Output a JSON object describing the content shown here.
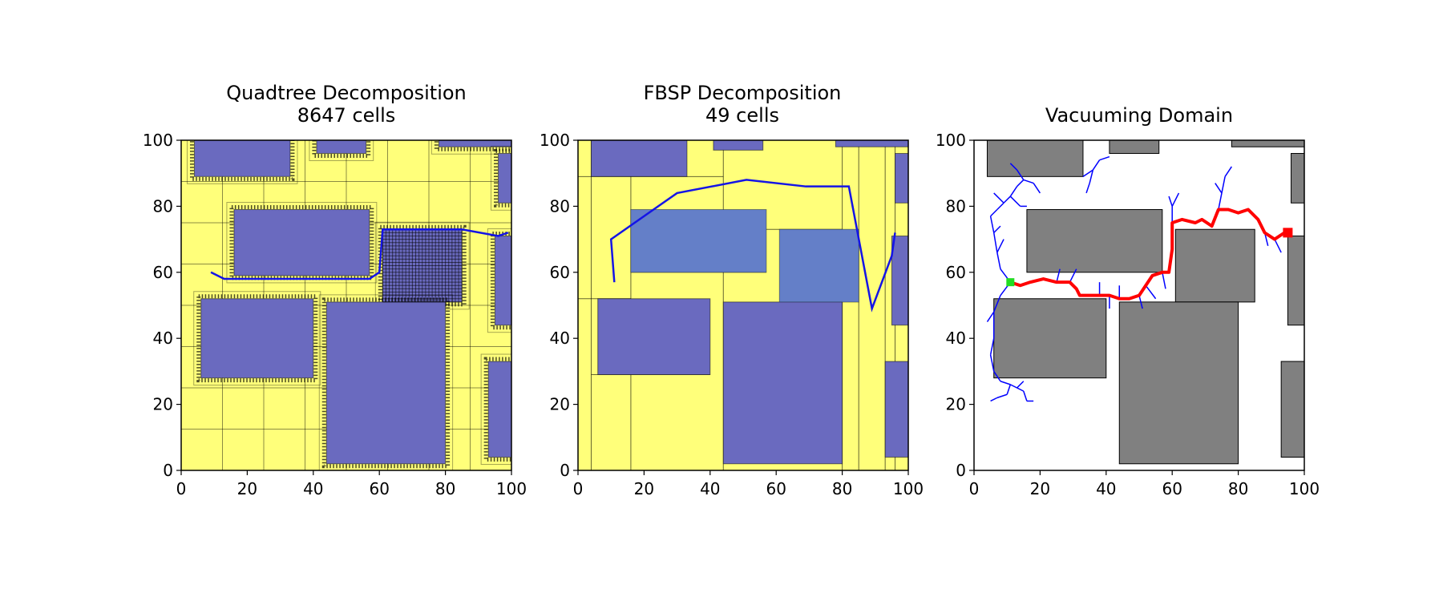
{
  "chart_data": [
    {
      "type": "decomposition",
      "title": "Quadtree Decomposition",
      "subtitle": "8647 cells",
      "xlim": [
        0,
        100
      ],
      "ylim": [
        0,
        100
      ],
      "xticks": [
        "0",
        "20",
        "40",
        "60",
        "80",
        "100"
      ],
      "yticks": [
        "0",
        "20",
        "40",
        "60",
        "80",
        "100"
      ],
      "free_color": "#ffff7a",
      "obstacle_color": "#6a6abf",
      "path_color": "#1414e6",
      "obstacles": [
        {
          "x0": 4,
          "y0": 89,
          "x1": 33,
          "y1": 100
        },
        {
          "x0": 41,
          "y0": 96,
          "x1": 56,
          "y1": 100
        },
        {
          "x0": 78,
          "y0": 98,
          "x1": 100,
          "y1": 100
        },
        {
          "x0": 96,
          "y0": 81,
          "x1": 100,
          "y1": 96
        },
        {
          "x0": 16,
          "y0": 59,
          "x1": 57,
          "y1": 79
        },
        {
          "x0": 61,
          "y0": 51,
          "x1": 85,
          "y1": 73
        },
        {
          "x0": 95,
          "y0": 44,
          "x1": 100,
          "y1": 71
        },
        {
          "x0": 6,
          "y0": 28,
          "x1": 40,
          "y1": 52
        },
        {
          "x0": 44,
          "y0": 2,
          "x1": 80,
          "y1": 51
        },
        {
          "x0": 93,
          "y0": 4,
          "x1": 100,
          "y1": 33
        }
      ],
      "path": [
        [
          9,
          60
        ],
        [
          13,
          58
        ],
        [
          57,
          58
        ],
        [
          60,
          60
        ],
        [
          61,
          73
        ],
        [
          85,
          73
        ],
        [
          96,
          71
        ],
        [
          99,
          72
        ]
      ]
    },
    {
      "type": "decomposition",
      "title": "FBSP Decomposition",
      "subtitle": "49 cells",
      "xlim": [
        0,
        100
      ],
      "ylim": [
        0,
        100
      ],
      "xticks": [
        "0",
        "20",
        "40",
        "60",
        "80",
        "100"
      ],
      "yticks": [
        "0",
        "20",
        "40",
        "60",
        "80",
        "100"
      ],
      "free_color": "#ffff7a",
      "obstacle_color": "#6a6abf",
      "path_color": "#1414e6",
      "obstacles": [
        {
          "x0": 4,
          "y0": 89,
          "x1": 33,
          "y1": 100
        },
        {
          "x0": 41,
          "y0": 97,
          "x1": 56,
          "y1": 100
        },
        {
          "x0": 78,
          "y0": 98,
          "x1": 100,
          "y1": 100
        },
        {
          "x0": 96,
          "y0": 81,
          "x1": 100,
          "y1": 96
        },
        {
          "x0": 16,
          "y0": 60,
          "x1": 57,
          "y1": 79
        },
        {
          "x0": 61,
          "y0": 51,
          "x1": 85,
          "y1": 73
        },
        {
          "x0": 95,
          "y0": 44,
          "x1": 100,
          "y1": 71
        },
        {
          "x0": 6,
          "y0": 29,
          "x1": 40,
          "y1": 52
        },
        {
          "x0": 44,
          "y0": 2,
          "x1": 80,
          "y1": 51
        },
        {
          "x0": 93,
          "y0": 4,
          "x1": 100,
          "y1": 33
        }
      ],
      "path": [
        [
          11,
          57
        ],
        [
          10,
          70
        ],
        [
          30,
          84
        ],
        [
          51,
          88
        ],
        [
          69,
          86
        ],
        [
          82,
          86
        ],
        [
          89,
          49
        ],
        [
          95,
          65
        ],
        [
          96,
          72
        ]
      ]
    },
    {
      "type": "tree",
      "title": "Vacuuming Domain",
      "xlim": [
        0,
        100
      ],
      "ylim": [
        0,
        100
      ],
      "xticks": [
        "0",
        "20",
        "40",
        "60",
        "80",
        "100"
      ],
      "yticks": [
        "0",
        "20",
        "40",
        "60",
        "80",
        "100"
      ],
      "obstacle_color": "#808080",
      "tree_color": "#0000ff",
      "path_color": "#ff0000",
      "start_color": "#22dd22",
      "goal_color": "#ff0000",
      "start": [
        11,
        57
      ],
      "goal": [
        95,
        72
      ],
      "obstacles": [
        {
          "x0": 4,
          "y0": 89,
          "x1": 33,
          "y1": 100
        },
        {
          "x0": 41,
          "y0": 96,
          "x1": 56,
          "y1": 100
        },
        {
          "x0": 78,
          "y0": 98,
          "x1": 100,
          "y1": 100
        },
        {
          "x0": 96,
          "y0": 81,
          "x1": 100,
          "y1": 96
        },
        {
          "x0": 16,
          "y0": 60,
          "x1": 57,
          "y1": 79
        },
        {
          "x0": 61,
          "y0": 51,
          "x1": 85,
          "y1": 73
        },
        {
          "x0": 95,
          "y0": 44,
          "x1": 100,
          "y1": 71
        },
        {
          "x0": 6,
          "y0": 28,
          "x1": 40,
          "y1": 52
        },
        {
          "x0": 44,
          "y0": 2,
          "x1": 80,
          "y1": 51
        },
        {
          "x0": 93,
          "y0": 4,
          "x1": 100,
          "y1": 33
        }
      ],
      "path": [
        [
          11,
          57
        ],
        [
          14,
          56
        ],
        [
          17,
          57
        ],
        [
          21,
          58
        ],
        [
          25,
          57
        ],
        [
          29,
          57
        ],
        [
          31,
          55
        ],
        [
          32,
          53
        ],
        [
          35,
          53
        ],
        [
          38,
          53
        ],
        [
          41,
          53
        ],
        [
          44,
          52
        ],
        [
          47,
          52
        ],
        [
          50,
          53
        ],
        [
          52,
          56
        ],
        [
          54,
          59
        ],
        [
          57,
          60
        ],
        [
          59,
          60
        ],
        [
          60,
          67
        ],
        [
          60,
          75
        ],
        [
          63,
          76
        ],
        [
          67,
          75
        ],
        [
          69,
          76
        ],
        [
          72,
          74
        ],
        [
          74,
          79
        ],
        [
          77,
          79
        ],
        [
          80,
          78
        ],
        [
          83,
          79
        ],
        [
          86,
          76
        ],
        [
          88,
          72
        ],
        [
          91,
          70
        ],
        [
          94,
          72
        ],
        [
          95,
          72
        ]
      ],
      "tree_edges": [
        [
          [
            11,
            57
          ],
          [
            8,
            61
          ]
        ],
        [
          [
            8,
            61
          ],
          [
            7,
            66
          ]
        ],
        [
          [
            7,
            66
          ],
          [
            6,
            72
          ]
        ],
        [
          [
            6,
            72
          ],
          [
            5,
            77
          ]
        ],
        [
          [
            7,
            66
          ],
          [
            9,
            70
          ]
        ],
        [
          [
            6,
            72
          ],
          [
            8,
            74
          ]
        ],
        [
          [
            5,
            77
          ],
          [
            7,
            79
          ]
        ],
        [
          [
            7,
            79
          ],
          [
            9,
            81
          ]
        ],
        [
          [
            9,
            81
          ],
          [
            11,
            83
          ]
        ],
        [
          [
            11,
            83
          ],
          [
            13,
            86
          ]
        ],
        [
          [
            13,
            86
          ],
          [
            15,
            88
          ]
        ],
        [
          [
            15,
            88
          ],
          [
            13,
            91
          ]
        ],
        [
          [
            13,
            91
          ],
          [
            11,
            93
          ]
        ],
        [
          [
            15,
            88
          ],
          [
            18,
            87
          ]
        ],
        [
          [
            18,
            87
          ],
          [
            20,
            84
          ]
        ],
        [
          [
            9,
            81
          ],
          [
            6,
            84
          ]
        ],
        [
          [
            11,
            83
          ],
          [
            14,
            80
          ]
        ],
        [
          [
            14,
            80
          ],
          [
            16,
            80
          ]
        ],
        [
          [
            11,
            57
          ],
          [
            8,
            53
          ]
        ],
        [
          [
            8,
            53
          ],
          [
            6,
            48
          ]
        ],
        [
          [
            6,
            48
          ],
          [
            4,
            45
          ]
        ],
        [
          [
            6,
            48
          ],
          [
            6,
            40
          ]
        ],
        [
          [
            6,
            40
          ],
          [
            5,
            35
          ]
        ],
        [
          [
            5,
            35
          ],
          [
            6,
            30
          ]
        ],
        [
          [
            6,
            30
          ],
          [
            8,
            27
          ]
        ],
        [
          [
            8,
            27
          ],
          [
            11,
            26
          ]
        ],
        [
          [
            11,
            26
          ],
          [
            13,
            25
          ]
        ],
        [
          [
            13,
            25
          ],
          [
            15,
            24
          ]
        ],
        [
          [
            15,
            24
          ],
          [
            16,
            21
          ]
        ],
        [
          [
            16,
            21
          ],
          [
            18,
            21
          ]
        ],
        [
          [
            11,
            26
          ],
          [
            10,
            23
          ]
        ],
        [
          [
            10,
            23
          ],
          [
            7,
            22
          ]
        ],
        [
          [
            7,
            22
          ],
          [
            5,
            21
          ]
        ],
        [
          [
            13,
            25
          ],
          [
            15,
            27
          ]
        ],
        [
          [
            25,
            57
          ],
          [
            26,
            61
          ]
        ],
        [
          [
            29,
            57
          ],
          [
            31,
            61
          ]
        ],
        [
          [
            38,
            53
          ],
          [
            38,
            57
          ]
        ],
        [
          [
            41,
            53
          ],
          [
            41,
            49
          ]
        ],
        [
          [
            44,
            52
          ],
          [
            44,
            56
          ]
        ],
        [
          [
            50,
            53
          ],
          [
            51,
            49
          ]
        ],
        [
          [
            52,
            56
          ],
          [
            55,
            52
          ]
        ],
        [
          [
            57,
            60
          ],
          [
            58,
            55
          ]
        ],
        [
          [
            33,
            89
          ],
          [
            36,
            91
          ]
        ],
        [
          [
            36,
            91
          ],
          [
            38,
            94
          ]
        ],
        [
          [
            38,
            94
          ],
          [
            41,
            95
          ]
        ],
        [
          [
            36,
            91
          ],
          [
            35,
            87
          ]
        ],
        [
          [
            35,
            87
          ],
          [
            34,
            84
          ]
        ],
        [
          [
            60,
            75
          ],
          [
            60,
            80
          ]
        ],
        [
          [
            60,
            80
          ],
          [
            59,
            83
          ]
        ],
        [
          [
            60,
            80
          ],
          [
            62,
            84
          ]
        ],
        [
          [
            74,
            79
          ],
          [
            75,
            84
          ]
        ],
        [
          [
            75,
            84
          ],
          [
            76,
            89
          ]
        ],
        [
          [
            76,
            89
          ],
          [
            78,
            92
          ]
        ],
        [
          [
            75,
            84
          ],
          [
            73,
            87
          ]
        ],
        [
          [
            88,
            72
          ],
          [
            89,
            68
          ]
        ],
        [
          [
            91,
            70
          ],
          [
            93,
            66
          ]
        ]
      ]
    }
  ]
}
